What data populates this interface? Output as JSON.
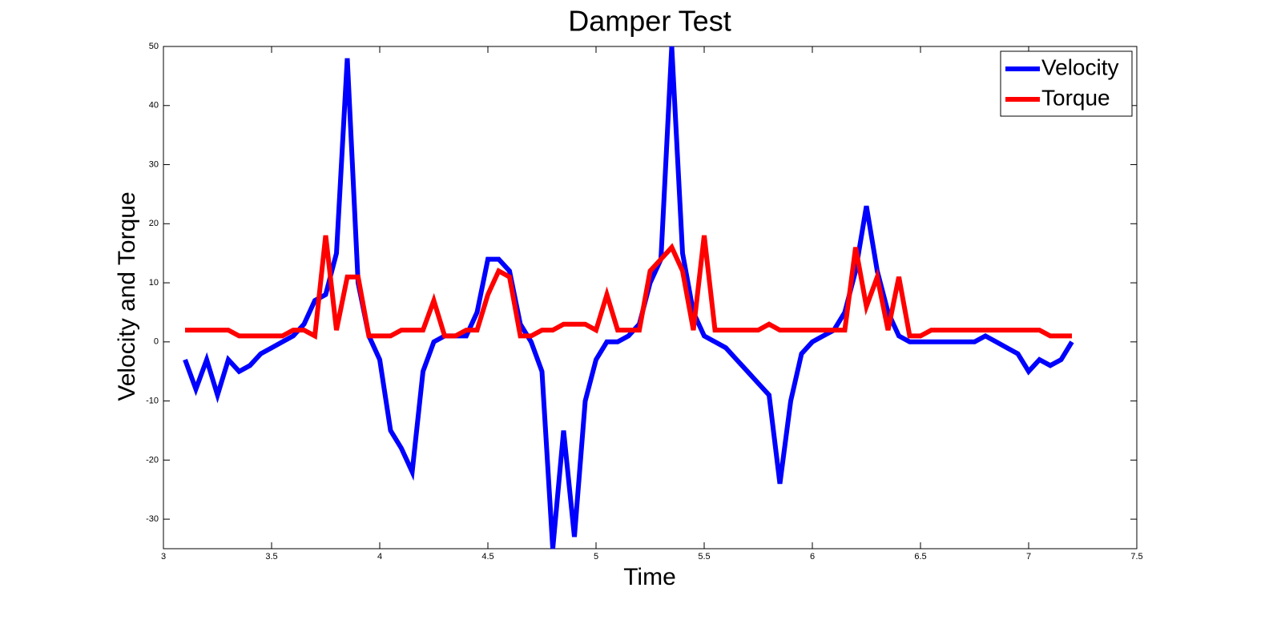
{
  "chart_data": {
    "type": "line",
    "title": "Damper Test",
    "x_label": "Time",
    "y_label": "Velocity and Torque",
    "x": [
      3.1,
      3.15,
      3.2,
      3.25,
      3.3,
      3.35,
      3.4,
      3.45,
      3.5,
      3.55,
      3.6,
      3.65,
      3.7,
      3.75,
      3.8,
      3.85,
      3.9,
      3.95,
      4.0,
      4.05,
      4.1,
      4.15,
      4.2,
      4.25,
      4.3,
      4.35,
      4.4,
      4.45,
      4.5,
      4.55,
      4.6,
      4.65,
      4.7,
      4.75,
      4.8,
      4.85,
      4.9,
      4.95,
      5.0,
      5.05,
      5.1,
      5.15,
      5.2,
      5.25,
      5.3,
      5.35,
      5.4,
      5.45,
      5.5,
      5.55,
      5.6,
      5.65,
      5.7,
      5.75,
      5.8,
      5.85,
      5.9,
      5.95,
      6.0,
      6.05,
      6.1,
      6.15,
      6.2,
      6.25,
      6.3,
      6.35,
      6.4,
      6.45,
      6.5,
      6.55,
      6.6,
      6.65,
      6.7,
      6.75,
      6.8,
      6.85,
      6.9,
      6.95,
      7.0,
      7.05,
      7.1,
      7.15,
      7.2
    ],
    "series": [
      {
        "name": "Velocity",
        "color": "#0000ff",
        "values": [
          -3,
          -8,
          -3,
          -9,
          -3,
          -5,
          -4,
          -2,
          -1,
          0,
          1,
          3,
          7,
          8,
          15,
          48,
          10,
          1,
          -3,
          -15,
          -18,
          -22,
          -5,
          0,
          1,
          1,
          1,
          5,
          14,
          14,
          12,
          3,
          0,
          -5,
          -35,
          -15,
          -33,
          -10,
          -3,
          0,
          0,
          1,
          3,
          10,
          14,
          50,
          15,
          5,
          1,
          0,
          -1,
          -3,
          -5,
          -7,
          -9,
          -24,
          -10,
          -2,
          0,
          1,
          2,
          5,
          12,
          23,
          12,
          5,
          1,
          0,
          0,
          0,
          0,
          0,
          0,
          0,
          1,
          0,
          -1,
          -2,
          -5,
          -3,
          -4,
          -3,
          0
        ]
      },
      {
        "name": "Torque",
        "color": "#ff0000",
        "values": [
          2,
          2,
          2,
          2,
          2,
          1,
          1,
          1,
          1,
          1,
          2,
          2,
          1,
          18,
          2,
          11,
          11,
          1,
          1,
          1,
          2,
          2,
          2,
          7,
          1,
          1,
          2,
          2,
          8,
          12,
          11,
          1,
          1,
          2,
          2,
          3,
          3,
          3,
          2,
          8,
          2,
          2,
          2,
          12,
          14,
          16,
          12,
          2,
          18,
          2,
          2,
          2,
          2,
          2,
          3,
          2,
          2,
          2,
          2,
          2,
          2,
          2,
          16,
          6,
          11,
          2,
          11,
          1,
          1,
          2,
          2,
          2,
          2,
          2,
          2,
          2,
          2,
          2,
          2,
          2,
          1,
          1,
          1
        ]
      }
    ],
    "xlim": [
      3,
      7.5
    ],
    "xticks": [
      3,
      3.5,
      4,
      4.5,
      5,
      5.5,
      6,
      6.5,
      7,
      7.5
    ],
    "ylim": [
      -35,
      50
    ],
    "yticks": [
      -30,
      -20,
      -10,
      0,
      10,
      20,
      30,
      40,
      50
    ],
    "legend": "top-right",
    "grid": false
  }
}
